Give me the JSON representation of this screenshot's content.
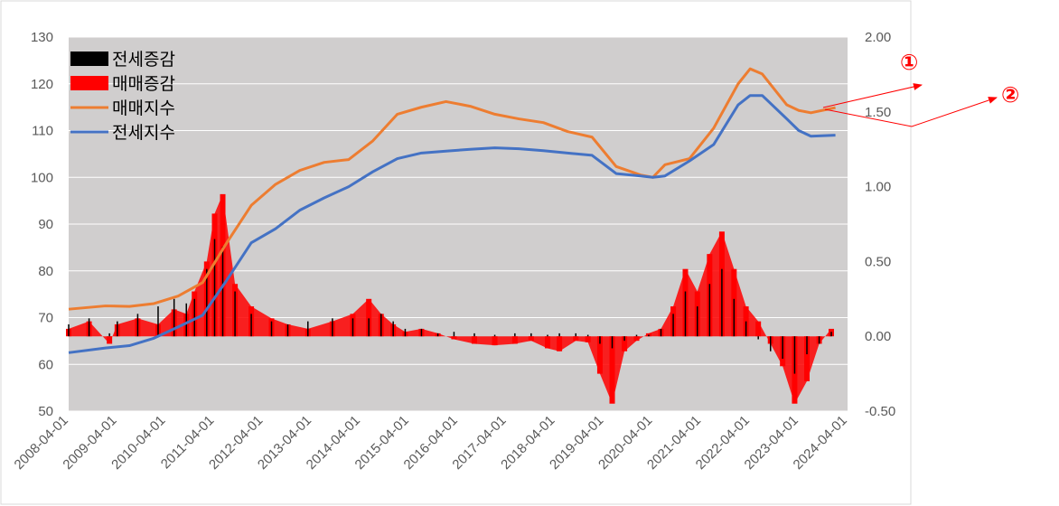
{
  "chart_data": {
    "type": "bar+line",
    "x_ticks": [
      "2008-04-01",
      "2009-04-01",
      "2010-04-01",
      "2011-04-01",
      "2012-04-01",
      "2013-04-01",
      "2014-04-01",
      "2015-04-01",
      "2016-04-01",
      "2017-04-01",
      "2018-04-01",
      "2019-04-01",
      "2020-04-01",
      "2021-04-01",
      "2022-04-01",
      "2023-04-01",
      "2024-04-01"
    ],
    "xlim": [
      "2008-04-01",
      "2024-04-01"
    ],
    "y_left": {
      "range": [
        50,
        130
      ],
      "ticks": [
        "130",
        "120",
        "110",
        "100",
        "90",
        "80",
        "70",
        "60",
        "50"
      ]
    },
    "y_right": {
      "range": [
        -0.5,
        2.0
      ],
      "ticks": [
        "2.00",
        "1.50",
        "1.00",
        "0.50",
        "0.00",
        "-0.50"
      ]
    },
    "legend": [
      {
        "name": "전세증감",
        "kind": "bar",
        "color": "#000000"
      },
      {
        "name": "매매증감",
        "kind": "bar",
        "color": "#ff0000"
      },
      {
        "name": "매매지수",
        "kind": "line",
        "color": "#ed7d31"
      },
      {
        "name": "전세지수",
        "kind": "line",
        "color": "#4472c4"
      }
    ],
    "legend_position": "top-left",
    "grid": "horizontal",
    "series": [
      {
        "name": "매매지수",
        "axis": "left",
        "type": "line",
        "color": "#ed7d31",
        "x": [
          "2008-04",
          "2009-01",
          "2009-07",
          "2010-01",
          "2010-07",
          "2011-01",
          "2011-07",
          "2012-01",
          "2012-07",
          "2013-01",
          "2013-07",
          "2014-01",
          "2014-07",
          "2015-01",
          "2015-07",
          "2016-01",
          "2016-07",
          "2017-01",
          "2017-07",
          "2018-01",
          "2018-07",
          "2019-01",
          "2019-07",
          "2020-01",
          "2020-04",
          "2020-07",
          "2021-01",
          "2021-07",
          "2022-01",
          "2022-04",
          "2022-07",
          "2023-01",
          "2023-04",
          "2023-07",
          "2024-01"
        ],
        "y": [
          71.8,
          72.5,
          72.4,
          73,
          74.6,
          77.5,
          86,
          94,
          98.5,
          101.5,
          103.2,
          103.8,
          107.8,
          113.5,
          115,
          116.2,
          115.2,
          113.5,
          112.5,
          111.7,
          109.8,
          108.6,
          102.3,
          100.5,
          100,
          102.7,
          104,
          110.5,
          120,
          123.2,
          122.1,
          115.5,
          114.3,
          113.8,
          114.9
        ]
      },
      {
        "name": "전세지수",
        "axis": "left",
        "type": "line",
        "color": "#4472c4",
        "x": [
          "2008-04",
          "2009-01",
          "2009-07",
          "2010-01",
          "2010-07",
          "2011-01",
          "2011-07",
          "2012-01",
          "2012-07",
          "2013-01",
          "2013-07",
          "2014-01",
          "2014-07",
          "2015-01",
          "2015-07",
          "2016-01",
          "2016-07",
          "2017-01",
          "2017-07",
          "2018-01",
          "2018-07",
          "2019-01",
          "2019-07",
          "2020-01",
          "2020-04",
          "2020-07",
          "2021-01",
          "2021-07",
          "2022-01",
          "2022-04",
          "2022-07",
          "2023-01",
          "2023-04",
          "2023-07",
          "2024-01"
        ],
        "y": [
          62.5,
          63.5,
          64,
          65.6,
          68,
          70.5,
          78,
          86,
          89,
          93,
          95.6,
          98,
          101.2,
          104,
          105.2,
          105.6,
          106,
          106.3,
          106.1,
          105.7,
          105.2,
          104.7,
          100.8,
          100.3,
          100,
          100.3,
          103.5,
          107,
          115.5,
          117.5,
          117.5,
          112.5,
          110,
          108.8,
          109
        ]
      },
      {
        "name": "매매증감",
        "axis": "right",
        "type": "bar",
        "color": "#ff0000",
        "x": [
          "2008-04",
          "2008-09",
          "2009-02",
          "2009-04",
          "2009-09",
          "2010-02",
          "2010-06",
          "2010-09",
          "2010-11",
          "2011-02",
          "2011-04",
          "2011-06",
          "2011-09",
          "2012-01",
          "2012-06",
          "2012-10",
          "2013-03",
          "2013-09",
          "2014-02",
          "2014-06",
          "2014-09",
          "2014-12",
          "2015-03",
          "2015-07",
          "2015-11",
          "2016-03",
          "2016-08",
          "2017-01",
          "2017-06",
          "2017-10",
          "2018-02",
          "2018-05",
          "2018-09",
          "2018-12",
          "2019-03",
          "2019-06",
          "2019-09",
          "2019-12",
          "2020-03",
          "2020-06",
          "2020-09",
          "2020-12",
          "2021-03",
          "2021-06",
          "2021-09",
          "2021-12",
          "2022-03",
          "2022-06",
          "2022-09",
          "2022-12",
          "2023-03",
          "2023-06",
          "2023-09",
          "2023-12"
        ],
        "y": [
          0.05,
          0.1,
          -0.05,
          0.08,
          0.12,
          0.08,
          0.18,
          0.15,
          0.3,
          0.5,
          0.82,
          0.95,
          0.35,
          0.2,
          0.12,
          0.08,
          0.05,
          0.1,
          0.15,
          0.25,
          0.15,
          0.08,
          0.03,
          0.05,
          0.02,
          -0.02,
          -0.05,
          -0.06,
          -0.05,
          -0.03,
          -0.08,
          -0.1,
          -0.03,
          -0.04,
          -0.25,
          -0.45,
          -0.1,
          -0.03,
          0.02,
          0.05,
          0.2,
          0.45,
          0.3,
          0.55,
          0.7,
          0.45,
          0.2,
          0.1,
          -0.05,
          -0.2,
          -0.45,
          -0.3,
          -0.05,
          0.05
        ]
      },
      {
        "name": "전세증감",
        "axis": "right",
        "type": "bar",
        "color": "#000000",
        "x": [
          "2008-04",
          "2008-09",
          "2009-02",
          "2009-04",
          "2009-09",
          "2010-02",
          "2010-06",
          "2010-09",
          "2010-11",
          "2011-02",
          "2011-04",
          "2011-06",
          "2011-09",
          "2012-01",
          "2012-06",
          "2012-10",
          "2013-03",
          "2013-09",
          "2014-02",
          "2014-06",
          "2014-09",
          "2014-12",
          "2015-03",
          "2015-07",
          "2015-11",
          "2016-03",
          "2016-08",
          "2017-01",
          "2017-06",
          "2017-10",
          "2018-02",
          "2018-05",
          "2018-09",
          "2018-12",
          "2019-03",
          "2019-06",
          "2019-09",
          "2019-12",
          "2020-03",
          "2020-06",
          "2020-09",
          "2020-12",
          "2021-03",
          "2021-06",
          "2021-09",
          "2021-12",
          "2022-03",
          "2022-06",
          "2022-09",
          "2022-12",
          "2023-03",
          "2023-06",
          "2023-09",
          "2023-12"
        ],
        "y": [
          0.08,
          0.12,
          0.02,
          0.1,
          0.15,
          0.2,
          0.25,
          0.22,
          0.25,
          0.45,
          0.65,
          0.6,
          0.3,
          0.15,
          0.1,
          0.08,
          0.1,
          0.12,
          0.12,
          0.12,
          0.15,
          0.1,
          0.05,
          0.05,
          0.02,
          0.03,
          0.02,
          0.01,
          0.02,
          0.02,
          0.01,
          0.02,
          0.02,
          0.01,
          -0.05,
          -0.08,
          -0.03,
          0.01,
          0.01,
          0.05,
          0.15,
          0.3,
          0.2,
          0.35,
          0.45,
          0.25,
          0.1,
          -0.02,
          -0.1,
          -0.15,
          -0.25,
          -0.12,
          -0.05,
          0.03
        ]
      }
    ]
  },
  "callouts": [
    {
      "label": "①",
      "target": "매매지수"
    },
    {
      "label": "②",
      "target": "전세지수"
    }
  ]
}
